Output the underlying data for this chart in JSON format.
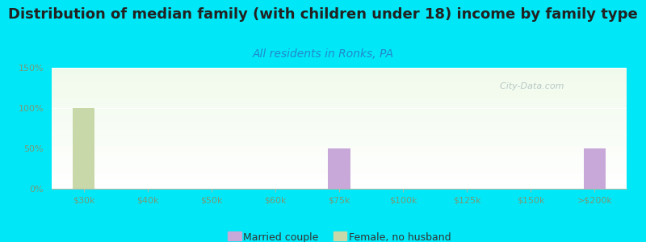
{
  "title": "Distribution of median family (with children under 18) income by family type",
  "subtitle": "All residents in Ronks, PA",
  "categories": [
    "$30k",
    "$40k",
    "$50k",
    "$60k",
    "$75k",
    "$100k",
    "$125k",
    "$150k",
    ">$200k"
  ],
  "married_couple": [
    0,
    0,
    0,
    0,
    50,
    0,
    0,
    0,
    50
  ],
  "female_no_husband": [
    100,
    0,
    0,
    0,
    0,
    0,
    0,
    0,
    0
  ],
  "married_color": "#c8a8d8",
  "female_color": "#c8d8a8",
  "bg_color": "#00e8f8",
  "ylim": [
    0,
    150
  ],
  "yticks": [
    0,
    50,
    100,
    150
  ],
  "ytick_labels": [
    "0%",
    "50%",
    "100%",
    "150%"
  ],
  "bar_width": 0.35,
  "watermark": "  City-Data.com",
  "legend_married": "Married couple",
  "legend_female": "Female, no husband",
  "title_fontsize": 13,
  "subtitle_fontsize": 10,
  "subtitle_color": "#2288cc",
  "tick_color": "#779977",
  "axis_label_color": "#557755"
}
